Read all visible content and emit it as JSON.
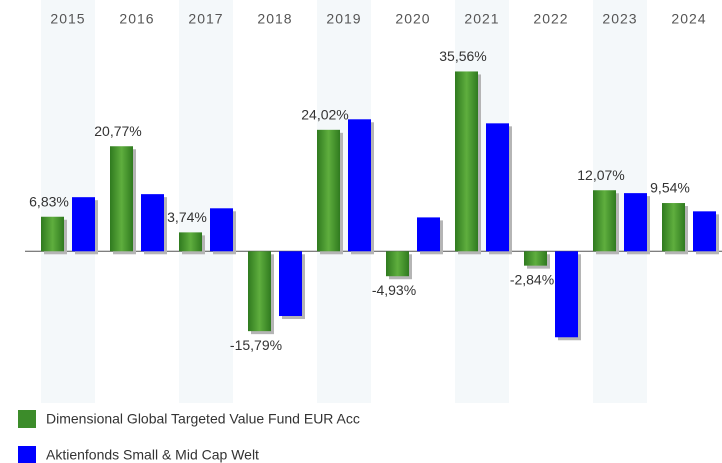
{
  "chart_data": {
    "type": "bar",
    "categories": [
      "2015",
      "2016",
      "2017",
      "2018",
      "2019",
      "2020",
      "2021",
      "2022",
      "2023",
      "2024"
    ],
    "series": [
      {
        "name": "Dimensional Global Targeted Value Fund EUR Acc",
        "color": "#3c8c2a",
        "values": [
          6.83,
          20.77,
          3.74,
          -15.79,
          24.02,
          -4.93,
          35.56,
          -2.84,
          12.07,
          9.54
        ],
        "value_labels": [
          "6,83%",
          "20,77%",
          "3,74%",
          "-15,79%",
          "24,02%",
          "-4,93%",
          "35,56%",
          "-2,84%",
          "12,07%",
          "9,54%"
        ]
      },
      {
        "name": "Aktienfonds Small & Mid Cap  Welt",
        "color": "#0000ff",
        "values": [
          10.7,
          11.3,
          8.5,
          -12.8,
          26.1,
          6.7,
          25.3,
          -17.0,
          11.5,
          7.9
        ]
      }
    ],
    "ylim": [
      -30,
      40
    ]
  }
}
